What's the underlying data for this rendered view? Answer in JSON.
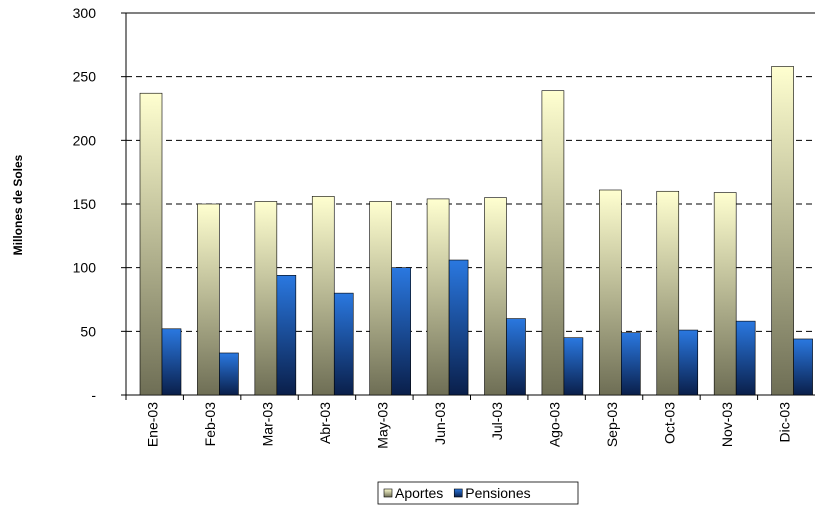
{
  "chart_data": {
    "type": "bar",
    "y_label": "Millones de Soles",
    "categories": [
      "Ene-03",
      "Feb-03",
      "Mar-03",
      "Abr-03",
      "May-03",
      "Jun-03",
      "Jul-03",
      "Ago-03",
      "Sep-03",
      "Oct-03",
      "Nov-03",
      "Dic-03"
    ],
    "series": [
      {
        "name": "Aportes",
        "color": "#e8e8b0",
        "values": [
          237,
          150,
          152,
          156,
          152,
          154,
          155,
          239,
          161,
          160,
          159,
          258
        ]
      },
      {
        "name": "Pensiones",
        "color": "#1a5fc0",
        "values": [
          52,
          33,
          94,
          80,
          100,
          106,
          60,
          45,
          49,
          51,
          58,
          44
        ]
      }
    ],
    "ylim": [
      0,
      300
    ],
    "yticks": [
      {
        "value": 0,
        "label": "-"
      },
      50,
      100,
      150,
      200,
      250,
      300
    ],
    "grid": true,
    "legend": "bottom"
  }
}
